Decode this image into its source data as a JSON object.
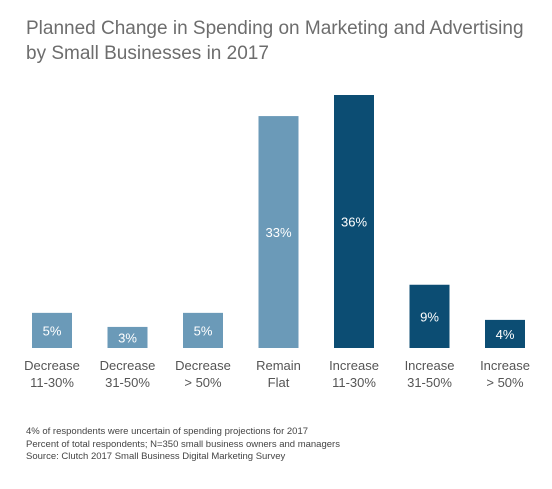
{
  "chart_data": {
    "type": "bar",
    "title_lines": [
      "Planned Change in Spending on Marketing and Advertising",
      "by Small Businesses in 2017"
    ],
    "categories": [
      [
        "Decrease",
        "11-30%"
      ],
      [
        "Decrease",
        "31-50%"
      ],
      [
        "Decrease",
        "> 50%"
      ],
      [
        "Remain",
        "Flat"
      ],
      [
        "Increase",
        "11-30%"
      ],
      [
        "Increase",
        "31-50%"
      ],
      [
        "Increase",
        "> 50%"
      ]
    ],
    "values": [
      5,
      3,
      5,
      33,
      36,
      9,
      4
    ],
    "value_labels": [
      "5%",
      "3%",
      "5%",
      "33%",
      "36%",
      "9%",
      "4%"
    ],
    "bar_colors": [
      "#6b9ab8",
      "#6b9ab8",
      "#6b9ab8",
      "#6b9ab8",
      "#0c4d73",
      "#0c4d73",
      "#0c4d73"
    ],
    "ylim": [
      0,
      36
    ],
    "grid": false,
    "legend": "none"
  },
  "notes": [
    "4% of respondents were uncertain of spending projections for 2017",
    "Percent of total respondents; N=350 small business owners and managers",
    "Source: Clutch 2017 Small Business Digital Marketing Survey"
  ]
}
